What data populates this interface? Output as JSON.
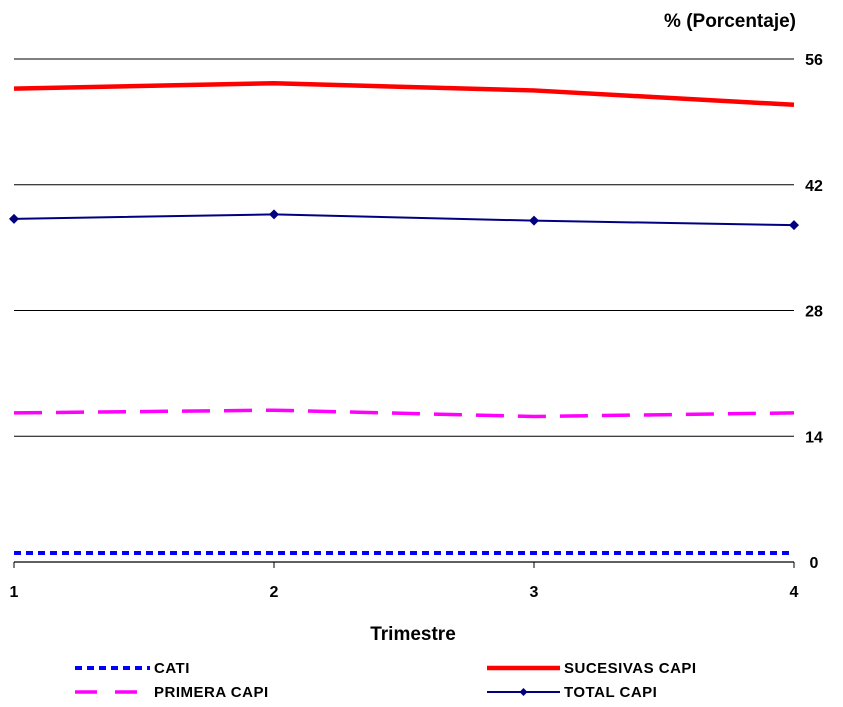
{
  "chart_data": {
    "type": "line",
    "ylabel": "% (Porcentaje)",
    "xlabel": "Trimestre",
    "categories": [
      "1",
      "2",
      "3",
      "4"
    ],
    "yticks": [
      "56",
      "42",
      "28",
      "14",
      "0"
    ],
    "ylim": [
      0,
      56
    ],
    "grid": true,
    "legend_position": "bottom",
    "series": [
      {
        "name": "CATI",
        "values": [
          1,
          1,
          1,
          1
        ],
        "color": "#0000FF",
        "style": "dotted"
      },
      {
        "name": "SUCESIVAS CAPI",
        "values": [
          52.7,
          53.3,
          52.5,
          50.9
        ],
        "color": "#FF0000",
        "style": "solid-thick"
      },
      {
        "name": "PRIMERA CAPI",
        "values": [
          16.6,
          16.9,
          16.2,
          16.6
        ],
        "color": "#FF00FF",
        "style": "dashed"
      },
      {
        "name": "TOTAL CAPI",
        "values": [
          38.2,
          38.7,
          38.0,
          37.5
        ],
        "color": "#000080",
        "style": "solid-marker"
      }
    ]
  }
}
